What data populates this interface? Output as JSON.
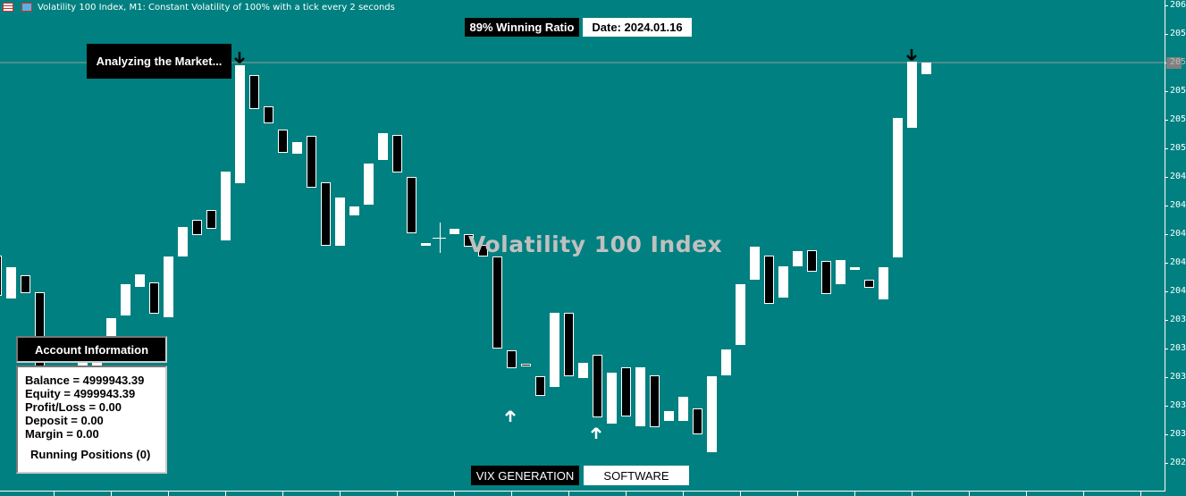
{
  "window": {
    "title": "Volatility 100 Index, M1:  Constant Volatility of 100% with a tick every 2 seconds",
    "icons": [
      "grid-menu-icon",
      "save-icon"
    ]
  },
  "chart": {
    "symbol_watermark": "Volatility 100 Index",
    "background_color": "#008080",
    "bull_color": "#ffffff",
    "bear_color": "#000000",
    "price_axis_labels": [
      "206",
      "205",
      "205",
      "205",
      "205",
      "205",
      "204",
      "204",
      "204",
      "204",
      "204",
      "203",
      "203",
      "203",
      "203",
      "203",
      "202"
    ],
    "current_price_label": "205"
  },
  "overlay": {
    "analyzing": "Analyzing the Market...",
    "winning_ratio": "89% Winning Ratio",
    "date": "Date: 2024.01.16",
    "brand_left": "VIX GENERATION",
    "brand_right": "SOFTWARE"
  },
  "account": {
    "header": "Account Information",
    "balance": "Balance = 4999943.39",
    "equity": "Equity = 4999943.39",
    "profit_loss": "Profit/Loss = 0.00",
    "deposit": "Deposit = 0.00",
    "margin": "Margin = 0.00",
    "running_positions": "Running Positions (0)"
  }
}
